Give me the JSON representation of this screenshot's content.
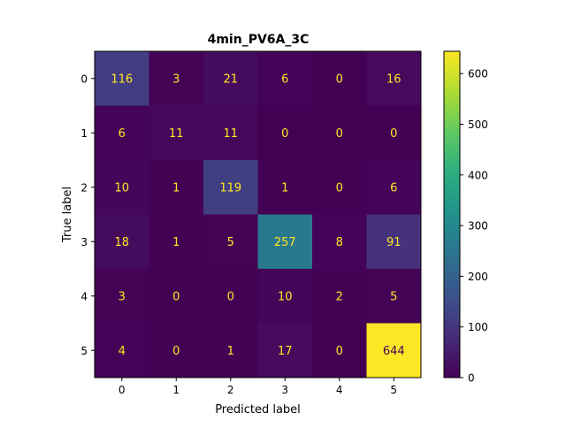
{
  "chart_data": {
    "type": "heatmap",
    "title": "4min_PV6A_3C",
    "xlabel": "Predicted label",
    "ylabel": "True label",
    "x_ticks": [
      "0",
      "1",
      "2",
      "3",
      "4",
      "5"
    ],
    "y_ticks": [
      "0",
      "1",
      "2",
      "3",
      "4",
      "5"
    ],
    "matrix": [
      [
        116,
        3,
        21,
        6,
        0,
        16
      ],
      [
        6,
        11,
        11,
        0,
        0,
        0
      ],
      [
        10,
        1,
        119,
        1,
        0,
        6
      ],
      [
        18,
        1,
        5,
        257,
        8,
        91
      ],
      [
        3,
        0,
        0,
        10,
        2,
        5
      ],
      [
        4,
        0,
        1,
        17,
        0,
        644
      ]
    ],
    "colormap": "viridis",
    "value_range": [
      0,
      644
    ],
    "colorbar_ticks": [
      "0",
      "100",
      "200",
      "300",
      "400",
      "500",
      "600"
    ],
    "colorbar_tick_values": [
      0,
      100,
      200,
      300,
      400,
      500,
      600
    ],
    "text_color_dark_cells": "#fde725",
    "text_color_light_cells": "#440154"
  }
}
